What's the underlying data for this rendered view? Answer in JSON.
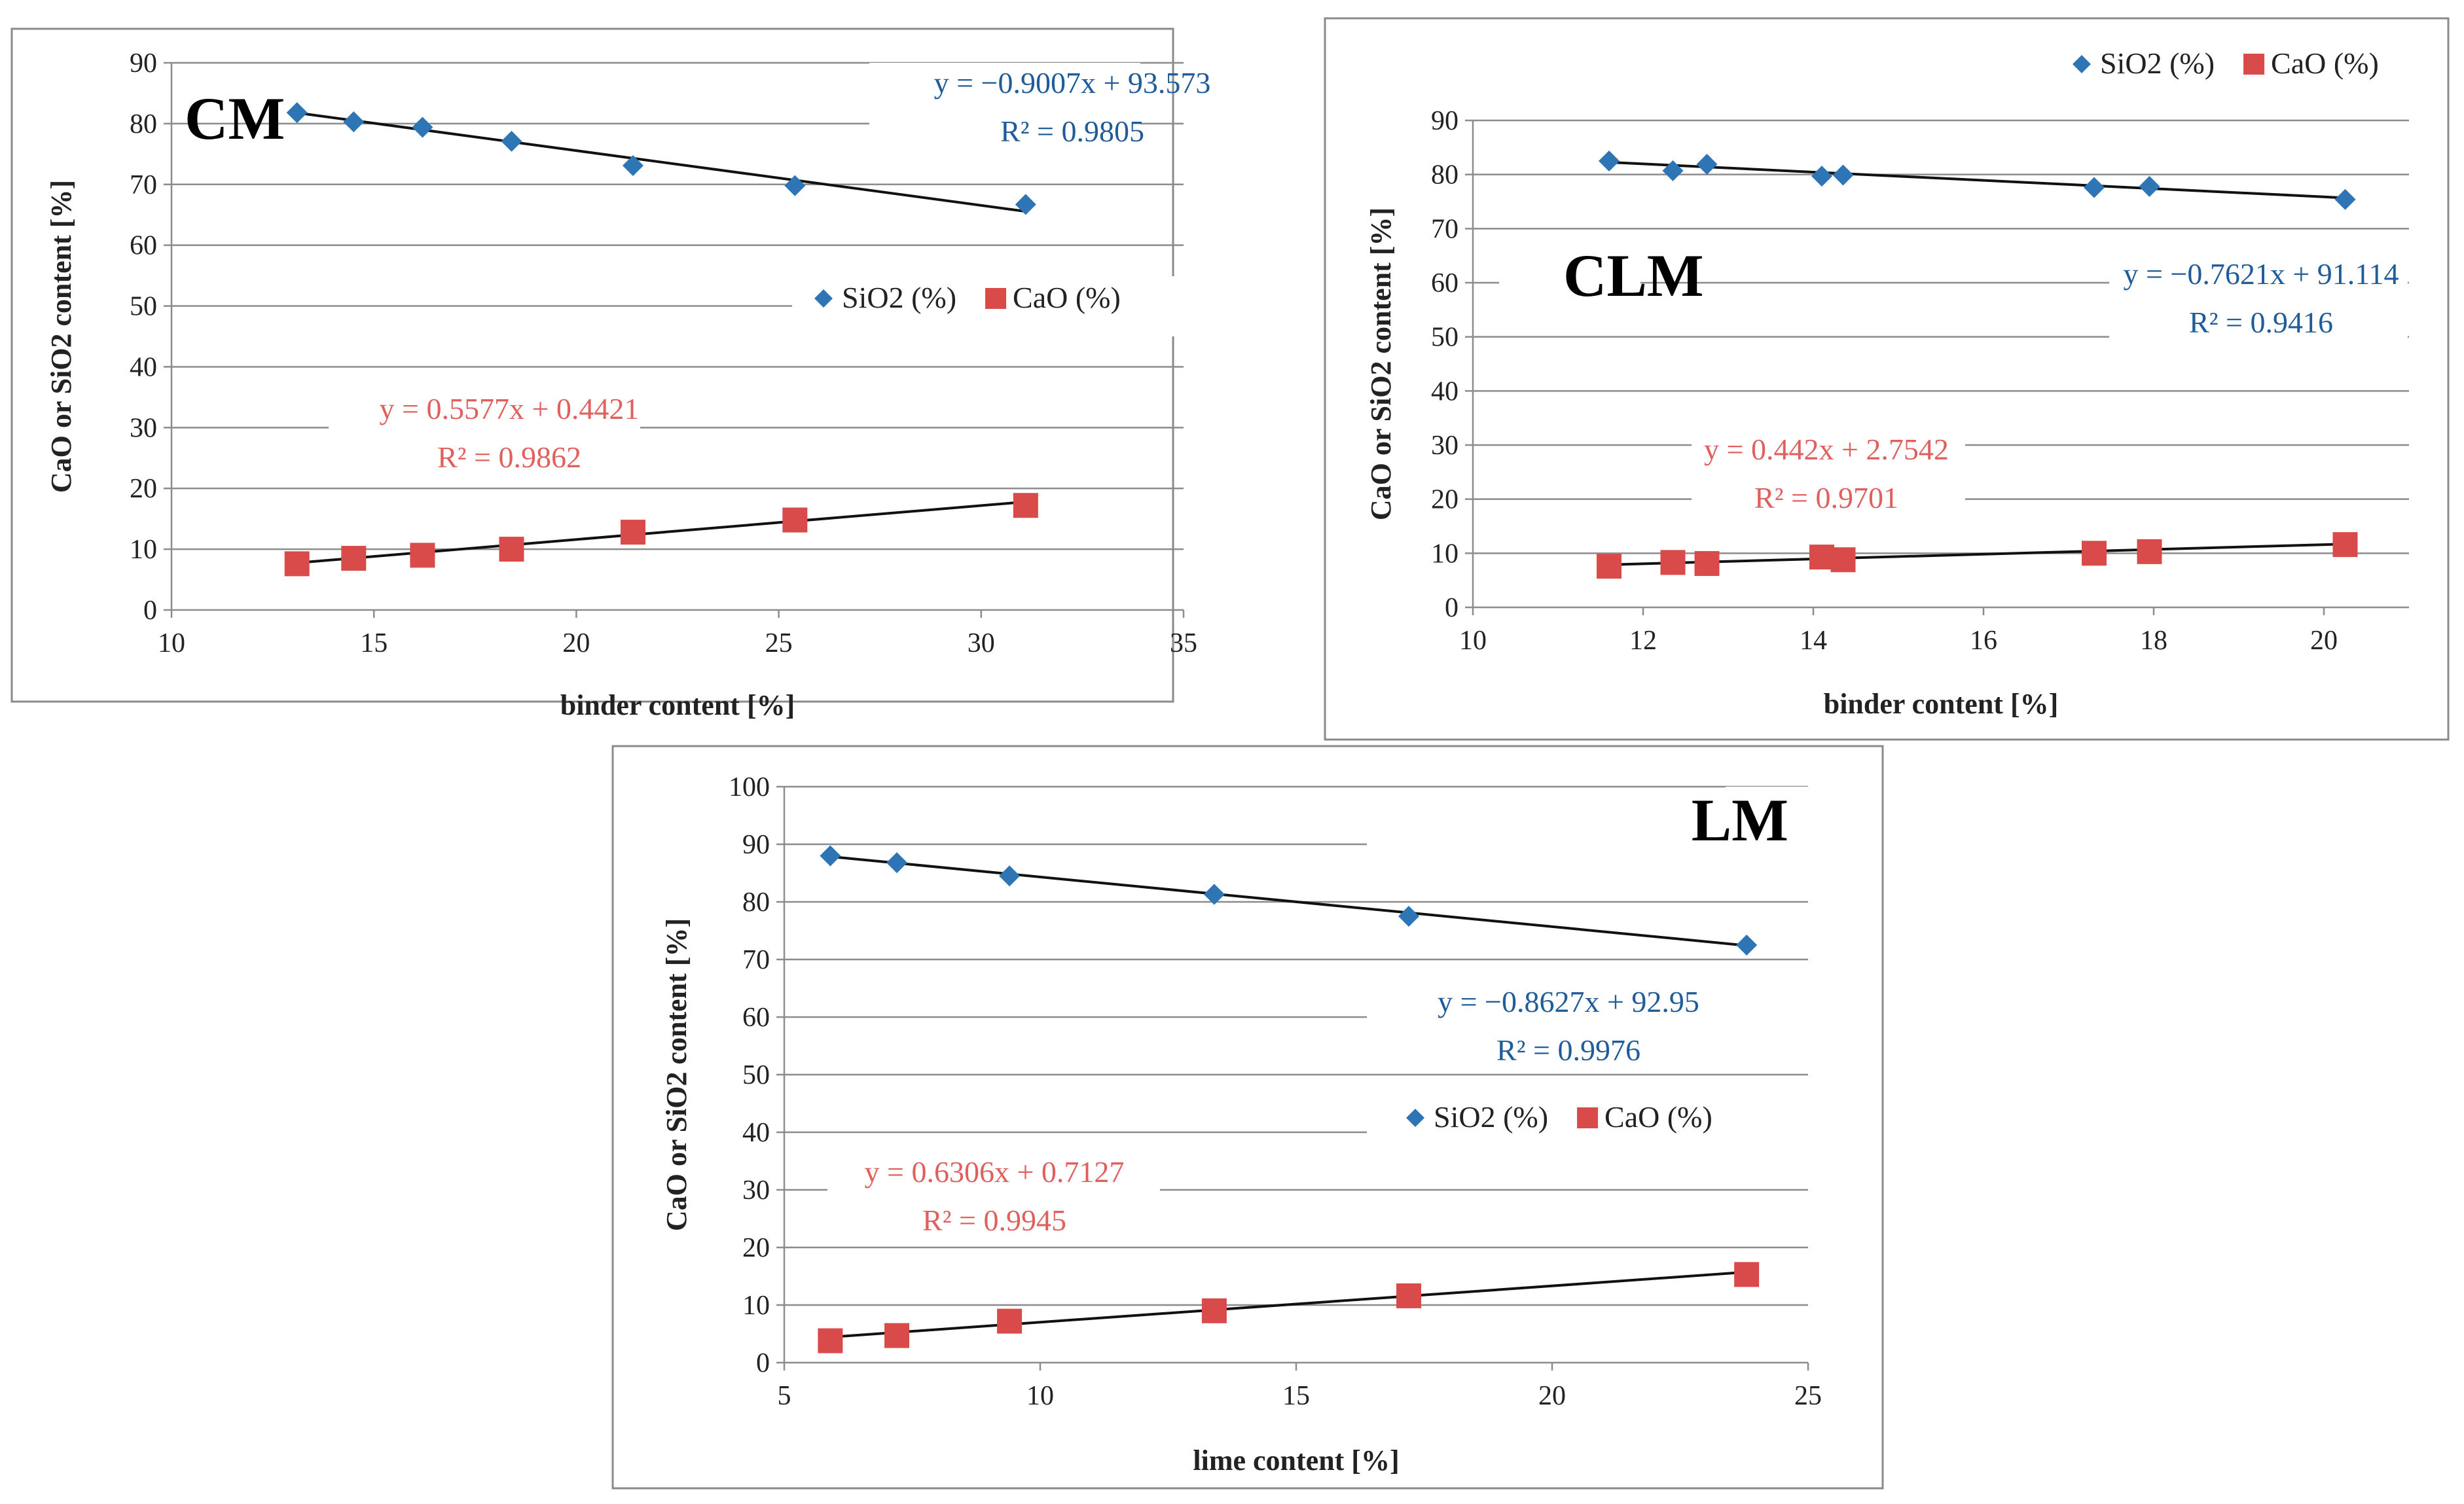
{
  "chart_data": [
    {
      "type": "scatter",
      "panel_label": "CM",
      "xlabel": "binder content [%]",
      "ylabel": "CaO or SiO2 content [%]",
      "xlim": [
        10,
        35
      ],
      "ylim": [
        0,
        90
      ],
      "xticks": [
        10,
        15,
        20,
        25,
        30,
        35
      ],
      "yticks": [
        0,
        10,
        20,
        30,
        40,
        50,
        60,
        70,
        80,
        90
      ],
      "grid": "horizontal",
      "legend": "middle-right",
      "series": [
        {
          "name": "SiO2 (%)",
          "marker": "diamond",
          "color": "#2E75B6",
          "x": [
            13.1,
            14.5,
            16.2,
            18.4,
            21.4,
            25.4,
            31.1
          ],
          "y": [
            81.8,
            80.3,
            79.4,
            77.1,
            73.1,
            69.8,
            66.7
          ],
          "trendline": {
            "slope": -0.9007,
            "intercept": 93.573,
            "equation": "y = −0.9007x + 93.573",
            "r2": "R² = 0.9805",
            "color": "#1F5C99"
          }
        },
        {
          "name": "CaO (%)",
          "marker": "square",
          "color": "#D94A4A",
          "x": [
            13.1,
            14.5,
            16.2,
            18.4,
            21.4,
            25.4,
            31.1
          ],
          "y": [
            7.6,
            8.5,
            9.0,
            10.0,
            12.8,
            14.8,
            17.2
          ],
          "trendline": {
            "slope": 0.5577,
            "intercept": 0.4421,
            "equation": "y = 0.5577x + 0.4421",
            "r2": "R² = 0.9862",
            "color": "#E0605E"
          }
        }
      ]
    },
    {
      "type": "scatter",
      "panel_label": "CLM",
      "xlabel": "binder content [%]",
      "ylabel": "CaO or SiO2 content [%]",
      "xlim": [
        10,
        21
      ],
      "ylim": [
        0,
        90
      ],
      "xticks": [
        10,
        12,
        14,
        16,
        18,
        20
      ],
      "yticks": [
        0,
        10,
        20,
        30,
        40,
        50,
        60,
        70,
        80,
        90
      ],
      "grid": "horizontal",
      "legend": "top-right",
      "series": [
        {
          "name": "SiO2 (%)",
          "marker": "diamond",
          "color": "#2E75B6",
          "x": [
            11.6,
            12.35,
            12.75,
            14.1,
            14.35,
            17.3,
            17.95,
            20.25
          ],
          "y": [
            82.5,
            80.7,
            81.9,
            79.7,
            79.9,
            77.6,
            77.8,
            75.4
          ],
          "trendline": {
            "slope": -0.7621,
            "intercept": 91.114,
            "equation": "y = −0.7621x + 91.114",
            "r2": "R² = 0.9416",
            "color": "#1F5C99"
          }
        },
        {
          "name": "CaO (%)",
          "marker": "square",
          "color": "#D94A4A",
          "x": [
            11.6,
            12.35,
            12.75,
            14.1,
            14.35,
            17.3,
            17.95,
            20.25
          ],
          "y": [
            7.6,
            8.3,
            8.1,
            9.3,
            8.8,
            10.0,
            10.3,
            11.6
          ],
          "trendline": {
            "slope": 0.442,
            "intercept": 2.7542,
            "equation": "y = 0.442x + 2.7542",
            "r2": "R² = 0.9701",
            "color": "#E0605E"
          }
        }
      ]
    },
    {
      "type": "scatter",
      "panel_label": "LM",
      "xlabel": "lime content [%]",
      "ylabel": "CaO or SiO2  content [%]",
      "xlim": [
        5,
        25
      ],
      "ylim": [
        0,
        100
      ],
      "xticks": [
        5,
        10,
        15,
        20,
        25
      ],
      "yticks": [
        0,
        10,
        20,
        30,
        40,
        50,
        60,
        70,
        80,
        90,
        100
      ],
      "grid": "horizontal",
      "legend": "middle-right",
      "series": [
        {
          "name": "SiO2 (%)",
          "marker": "diamond",
          "color": "#2E75B6",
          "x": [
            5.9,
            7.2,
            9.4,
            13.4,
            17.2,
            23.8
          ],
          "y": [
            88.0,
            86.8,
            84.5,
            81.3,
            77.5,
            72.5
          ],
          "trendline": {
            "slope": -0.8627,
            "intercept": 92.95,
            "equation": "y = −0.8627x + 92.95",
            "r2": "R² = 0.9976",
            "color": "#1F5C99"
          }
        },
        {
          "name": "CaO (%)",
          "marker": "square",
          "color": "#D94A4A",
          "x": [
            5.9,
            7.2,
            9.4,
            13.4,
            17.2,
            23.8
          ],
          "y": [
            3.8,
            4.7,
            7.2,
            9.0,
            11.6,
            15.3
          ],
          "trendline": {
            "slope": 0.6306,
            "intercept": 0.7127,
            "equation": "y = 0.6306x + 0.7127",
            "r2": "R² = 0.9945",
            "color": "#E0605E"
          }
        }
      ]
    }
  ]
}
